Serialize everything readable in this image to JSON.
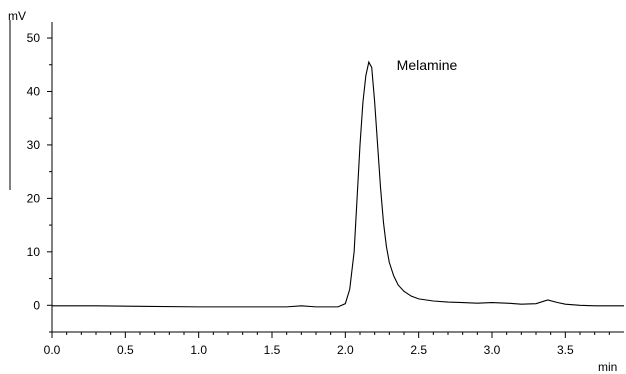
{
  "chart_data": {
    "type": "line",
    "title": "",
    "xlabel": "min",
    "ylabel": "mV",
    "xlim": [
      0.0,
      3.9
    ],
    "ylim": [
      -5,
      53
    ],
    "x_ticks": [
      "0.0",
      "0.5",
      "1.0",
      "1.5",
      "2.0",
      "2.5",
      "3.0",
      "3.5"
    ],
    "y_ticks": [
      "0",
      "10",
      "20",
      "30",
      "40",
      "50"
    ],
    "grid": false,
    "annotations": [
      {
        "text": "Melamine",
        "x": 2.35,
        "y": 44
      }
    ],
    "series": [
      {
        "color": "#000000",
        "x": [
          0.0,
          0.3,
          0.6,
          1.0,
          1.4,
          1.6,
          1.7,
          1.8,
          1.95,
          2.0,
          2.03,
          2.06,
          2.08,
          2.1,
          2.12,
          2.14,
          2.16,
          2.18,
          2.2,
          2.22,
          2.24,
          2.26,
          2.28,
          2.3,
          2.33,
          2.36,
          2.4,
          2.45,
          2.5,
          2.6,
          2.7,
          2.8,
          2.9,
          3.0,
          3.1,
          3.2,
          3.3,
          3.38,
          3.45,
          3.5,
          3.6,
          3.7,
          3.8,
          3.9
        ],
        "y": [
          -0.1,
          -0.1,
          -0.2,
          -0.3,
          -0.3,
          -0.3,
          -0.1,
          -0.3,
          -0.3,
          0.3,
          3.0,
          10.0,
          20.0,
          30.0,
          38.0,
          43.0,
          45.5,
          44.5,
          38.0,
          30.0,
          22.0,
          15.5,
          11.0,
          8.0,
          5.5,
          3.8,
          2.6,
          1.7,
          1.2,
          0.8,
          0.6,
          0.5,
          0.4,
          0.5,
          0.4,
          0.2,
          0.3,
          1.0,
          0.5,
          0.2,
          0.0,
          -0.1,
          -0.1,
          -0.1
        ]
      }
    ]
  }
}
